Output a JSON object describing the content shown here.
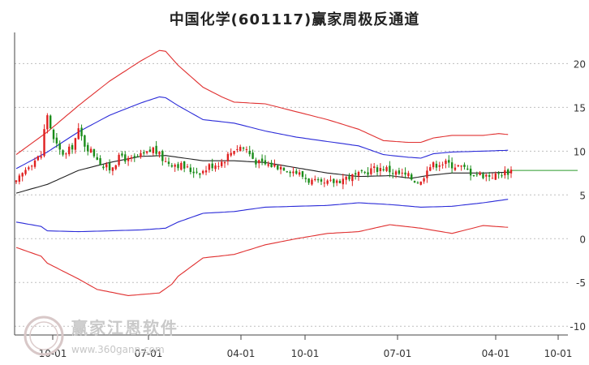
{
  "chart_data": {
    "type": "candlestick",
    "title": "中国化学(601117)赢家周极反通道",
    "y_axis": {
      "ticks": [
        20,
        15,
        10,
        5,
        0,
        -5,
        -10
      ],
      "ylim": [
        -11,
        23
      ],
      "position": "right",
      "grid": true
    },
    "x_axis": {
      "tick_labels": [
        "10-01",
        "07-01",
        "04-01",
        "10-01",
        "07-01",
        "04-01",
        "10-01"
      ]
    },
    "week_count": 160,
    "price_anchors": [
      [
        0,
        6.3
      ],
      [
        4,
        8.5
      ],
      [
        8,
        9.5
      ],
      [
        9,
        12.4
      ],
      [
        10,
        14.2
      ],
      [
        12,
        11.2
      ],
      [
        14,
        10.0
      ],
      [
        16,
        9.6
      ],
      [
        18,
        10.6
      ],
      [
        20,
        12.3
      ],
      [
        22,
        10.8
      ],
      [
        24,
        10.0
      ],
      [
        26,
        9.3
      ],
      [
        28,
        8.2
      ],
      [
        30,
        8.0
      ],
      [
        32,
        8.8
      ],
      [
        34,
        9.5
      ],
      [
        36,
        8.9
      ],
      [
        38,
        9.1
      ],
      [
        42,
        9.7
      ],
      [
        44,
        10.3
      ],
      [
        46,
        9.5
      ],
      [
        48,
        8.8
      ],
      [
        52,
        8.5
      ],
      [
        56,
        7.8
      ],
      [
        60,
        7.7
      ],
      [
        62,
        8.3
      ],
      [
        66,
        8.8
      ],
      [
        68,
        9.5
      ],
      [
        70,
        10.3
      ],
      [
        72,
        10.5
      ],
      [
        74,
        10.2
      ],
      [
        76,
        9.2
      ],
      [
        78,
        8.6
      ],
      [
        82,
        8.4
      ],
      [
        86,
        8.2
      ],
      [
        90,
        7.6
      ],
      [
        94,
        6.7
      ],
      [
        98,
        6.1
      ],
      [
        102,
        6.5
      ],
      [
        106,
        7.0
      ],
      [
        110,
        7.2
      ],
      [
        114,
        7.9
      ],
      [
        118,
        8.1
      ],
      [
        122,
        7.5
      ],
      [
        126,
        7.1
      ],
      [
        128,
        6.7
      ],
      [
        130,
        6.4
      ],
      [
        132,
        8.2
      ],
      [
        134,
        8.4
      ],
      [
        136,
        8.7
      ],
      [
        138,
        8.6
      ],
      [
        142,
        8.3
      ],
      [
        146,
        7.6
      ],
      [
        150,
        7.3
      ],
      [
        154,
        7.2
      ],
      [
        156,
        7.5
      ],
      [
        159,
        7.8
      ]
    ],
    "ma_line": [
      [
        0,
        5.2
      ],
      [
        10,
        6.2
      ],
      [
        20,
        7.8
      ],
      [
        30,
        8.7
      ],
      [
        40,
        9.4
      ],
      [
        48,
        9.5
      ],
      [
        60,
        8.9
      ],
      [
        70,
        8.9
      ],
      [
        80,
        8.7
      ],
      [
        90,
        8.1
      ],
      [
        100,
        7.5
      ],
      [
        110,
        7.1
      ],
      [
        120,
        7.2
      ],
      [
        127,
        6.9
      ],
      [
        132,
        7.2
      ],
      [
        140,
        7.5
      ],
      [
        150,
        7.5
      ],
      [
        159,
        7.6
      ]
    ],
    "outer_upper": [
      [
        0,
        9.6
      ],
      [
        10,
        12.2
      ],
      [
        20,
        15.2
      ],
      [
        30,
        18.0
      ],
      [
        40,
        20.3
      ],
      [
        46,
        21.5
      ],
      [
        48,
        21.4
      ],
      [
        52,
        19.8
      ],
      [
        60,
        17.3
      ],
      [
        66,
        16.2
      ],
      [
        70,
        15.6
      ],
      [
        80,
        15.4
      ],
      [
        90,
        14.5
      ],
      [
        100,
        13.6
      ],
      [
        110,
        12.5
      ],
      [
        118,
        11.2
      ],
      [
        126,
        11.0
      ],
      [
        130,
        11.0
      ],
      [
        134,
        11.5
      ],
      [
        140,
        11.8
      ],
      [
        150,
        11.8
      ],
      [
        155,
        12.0
      ],
      [
        158,
        11.9
      ]
    ],
    "inner_upper": [
      [
        0,
        8.0
      ],
      [
        10,
        9.9
      ],
      [
        20,
        12.2
      ],
      [
        30,
        14.1
      ],
      [
        40,
        15.5
      ],
      [
        46,
        16.2
      ],
      [
        48,
        16.1
      ],
      [
        52,
        15.2
      ],
      [
        60,
        13.6
      ],
      [
        70,
        13.2
      ],
      [
        80,
        12.3
      ],
      [
        90,
        11.6
      ],
      [
        100,
        11.1
      ],
      [
        110,
        10.6
      ],
      [
        118,
        9.6
      ],
      [
        126,
        9.3
      ],
      [
        130,
        9.2
      ],
      [
        134,
        9.7
      ],
      [
        140,
        9.9
      ],
      [
        150,
        10.0
      ],
      [
        158,
        10.1
      ]
    ],
    "inner_lower": [
      [
        0,
        1.9
      ],
      [
        8,
        1.4
      ],
      [
        10,
        0.9
      ],
      [
        20,
        0.8
      ],
      [
        40,
        1.0
      ],
      [
        48,
        1.2
      ],
      [
        52,
        1.9
      ],
      [
        60,
        2.9
      ],
      [
        70,
        3.1
      ],
      [
        80,
        3.6
      ],
      [
        90,
        3.7
      ],
      [
        100,
        3.8
      ],
      [
        110,
        4.1
      ],
      [
        120,
        3.9
      ],
      [
        130,
        3.6
      ],
      [
        140,
        3.7
      ],
      [
        150,
        4.1
      ],
      [
        158,
        4.5
      ]
    ],
    "outer_lower": [
      [
        0,
        -1.0
      ],
      [
        8,
        -2.0
      ],
      [
        10,
        -2.8
      ],
      [
        20,
        -4.6
      ],
      [
        26,
        -5.8
      ],
      [
        36,
        -6.5
      ],
      [
        46,
        -6.2
      ],
      [
        50,
        -5.2
      ],
      [
        52,
        -4.3
      ],
      [
        60,
        -2.2
      ],
      [
        70,
        -1.8
      ],
      [
        80,
        -0.7
      ],
      [
        90,
        0.0
      ],
      [
        100,
        0.6
      ],
      [
        110,
        0.8
      ],
      [
        120,
        1.6
      ],
      [
        130,
        1.2
      ],
      [
        140,
        0.6
      ],
      [
        150,
        1.5
      ],
      [
        158,
        1.3
      ]
    ],
    "last_price": 7.8,
    "colors": {
      "up": "#e02020",
      "down": "#1a8c1a",
      "outer": "#e03030",
      "inner": "#2a2ad8",
      "ma": "#222222",
      "grid": "#bfbfbf",
      "last_line": "#2a9a2a"
    }
  },
  "watermark": {
    "name": "赢家江恩软件",
    "url": "www.360gann.com"
  }
}
